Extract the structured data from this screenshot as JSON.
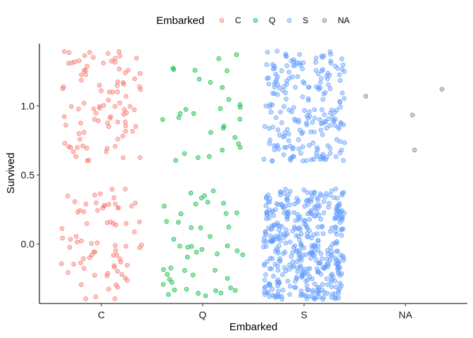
{
  "chart_data": {
    "type": "scatter",
    "title": "",
    "xlabel": "Embarked",
    "ylabel": "Survived",
    "categories": [
      "C",
      "Q",
      "S",
      "NA"
    ],
    "ylim": [
      -0.43,
      1.45
    ],
    "y_ticks": [
      0.0,
      0.5,
      1.0
    ],
    "y_tick_labels": [
      "0.0",
      "0.5",
      "1.0"
    ],
    "jitter_width": 0.4,
    "jitter_height": 0.4,
    "point_alpha": 0.4,
    "grid": false,
    "legend": {
      "title": "Embarked",
      "position": "top",
      "entries": [
        "C",
        "Q",
        "S",
        "NA"
      ]
    },
    "colors": {
      "C": "#F8766D",
      "Q": "#00BA38",
      "S": "#619CFF",
      "NA": "#7F7F7F"
    },
    "series": [
      {
        "name": "C",
        "values": [
          {
            "y": 0,
            "n": 75
          },
          {
            "y": 1,
            "n": 93
          }
        ]
      },
      {
        "name": "Q",
        "values": [
          {
            "y": 0,
            "n": 47
          },
          {
            "y": 1,
            "n": 30
          }
        ]
      },
      {
        "name": "S",
        "values": [
          {
            "y": 0,
            "n": 427
          },
          {
            "y": 1,
            "n": 217
          }
        ]
      },
      {
        "name": "NA",
        "values": [
          {
            "y": 0,
            "n": 0
          },
          {
            "y": 1,
            "n": 2
          }
        ]
      }
    ],
    "fixed_points": [
      {
        "category": "NA",
        "x_offset": 0.36,
        "y": 1.12
      },
      {
        "category": "NA",
        "x_offset": 0.09,
        "y": 0.68
      }
    ]
  }
}
